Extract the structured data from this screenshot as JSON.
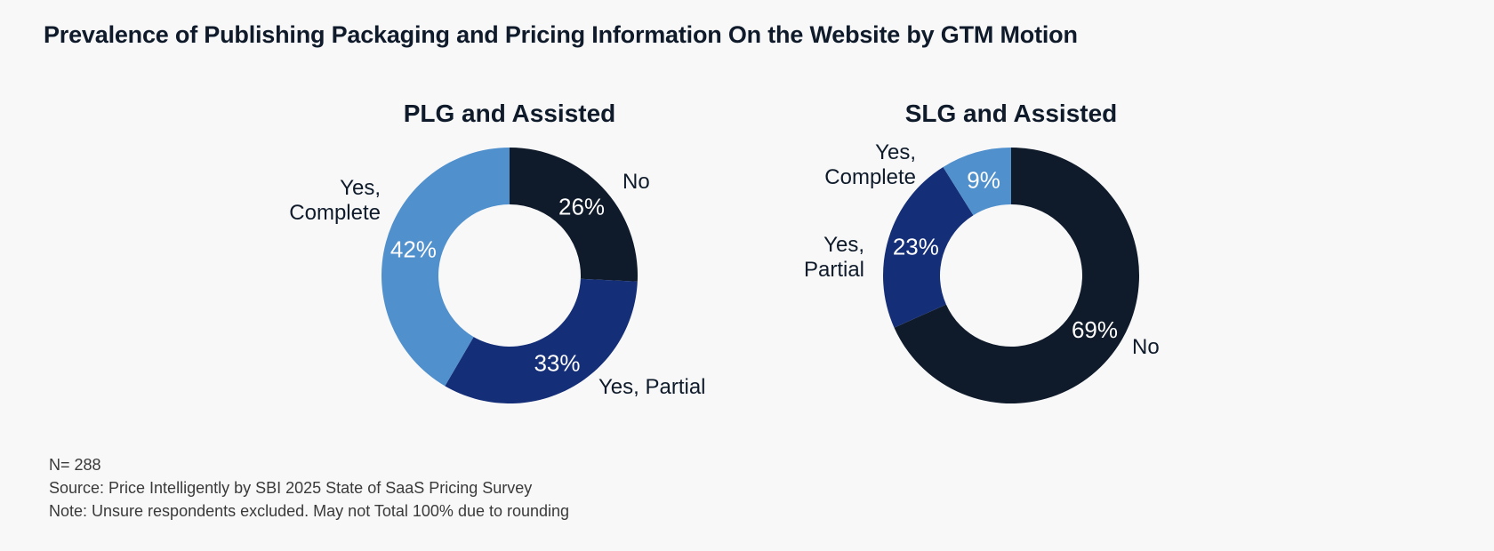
{
  "title": "Prevalence of Publishing Packaging and Pricing Information On the Website by GTM Motion",
  "chart_data": [
    {
      "type": "pie",
      "subtype": "donut",
      "title": "PLG and Assisted",
      "slices": [
        {
          "label": "No",
          "value": 26,
          "display": "26%",
          "color": "#0f1b2a"
        },
        {
          "label": "Yes, Partial",
          "value": 33,
          "display": "33%",
          "color": "#152e78"
        },
        {
          "label": "Yes, Complete",
          "value": 42,
          "display": "42%",
          "color": "#5090cd"
        }
      ]
    },
    {
      "type": "pie",
      "subtype": "donut",
      "title": "SLG and Assisted",
      "slices": [
        {
          "label": "No",
          "value": 69,
          "display": "69%",
          "color": "#0f1b2a"
        },
        {
          "label": "Yes, Partial",
          "value": 23,
          "display": "23%",
          "color": "#152e78"
        },
        {
          "label": "Yes, Complete",
          "value": 9,
          "display": "9%",
          "color": "#5090cd"
        }
      ]
    }
  ],
  "footer": {
    "n": "N= 288",
    "source": "Source: Price Intelligently by SBI 2025 State of SaaS Pricing Survey",
    "note": "Note: Unsure respondents excluded. May not Total 100% due to rounding"
  }
}
